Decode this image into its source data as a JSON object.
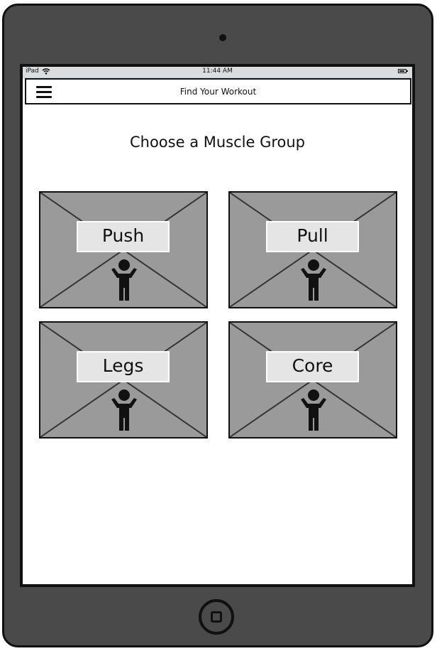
{
  "status_bar": {
    "device": "iPad",
    "time": "11:44 AM"
  },
  "nav": {
    "title": "Find Your Workout",
    "menu_icon": "hamburger-menu-icon"
  },
  "page": {
    "title": "Choose a Muscle Group"
  },
  "tiles": [
    {
      "label": "Push",
      "icon": "person-icon"
    },
    {
      "label": "Pull",
      "icon": "person-icon"
    },
    {
      "label": "Legs",
      "icon": "person-icon"
    },
    {
      "label": "Core",
      "icon": "person-icon"
    }
  ],
  "colors": {
    "device_frame": "#4a4a4a",
    "tile_bg": "#9a9a9a",
    "label_bg": "#e5e5e5",
    "status_bg": "#d9dde0"
  }
}
